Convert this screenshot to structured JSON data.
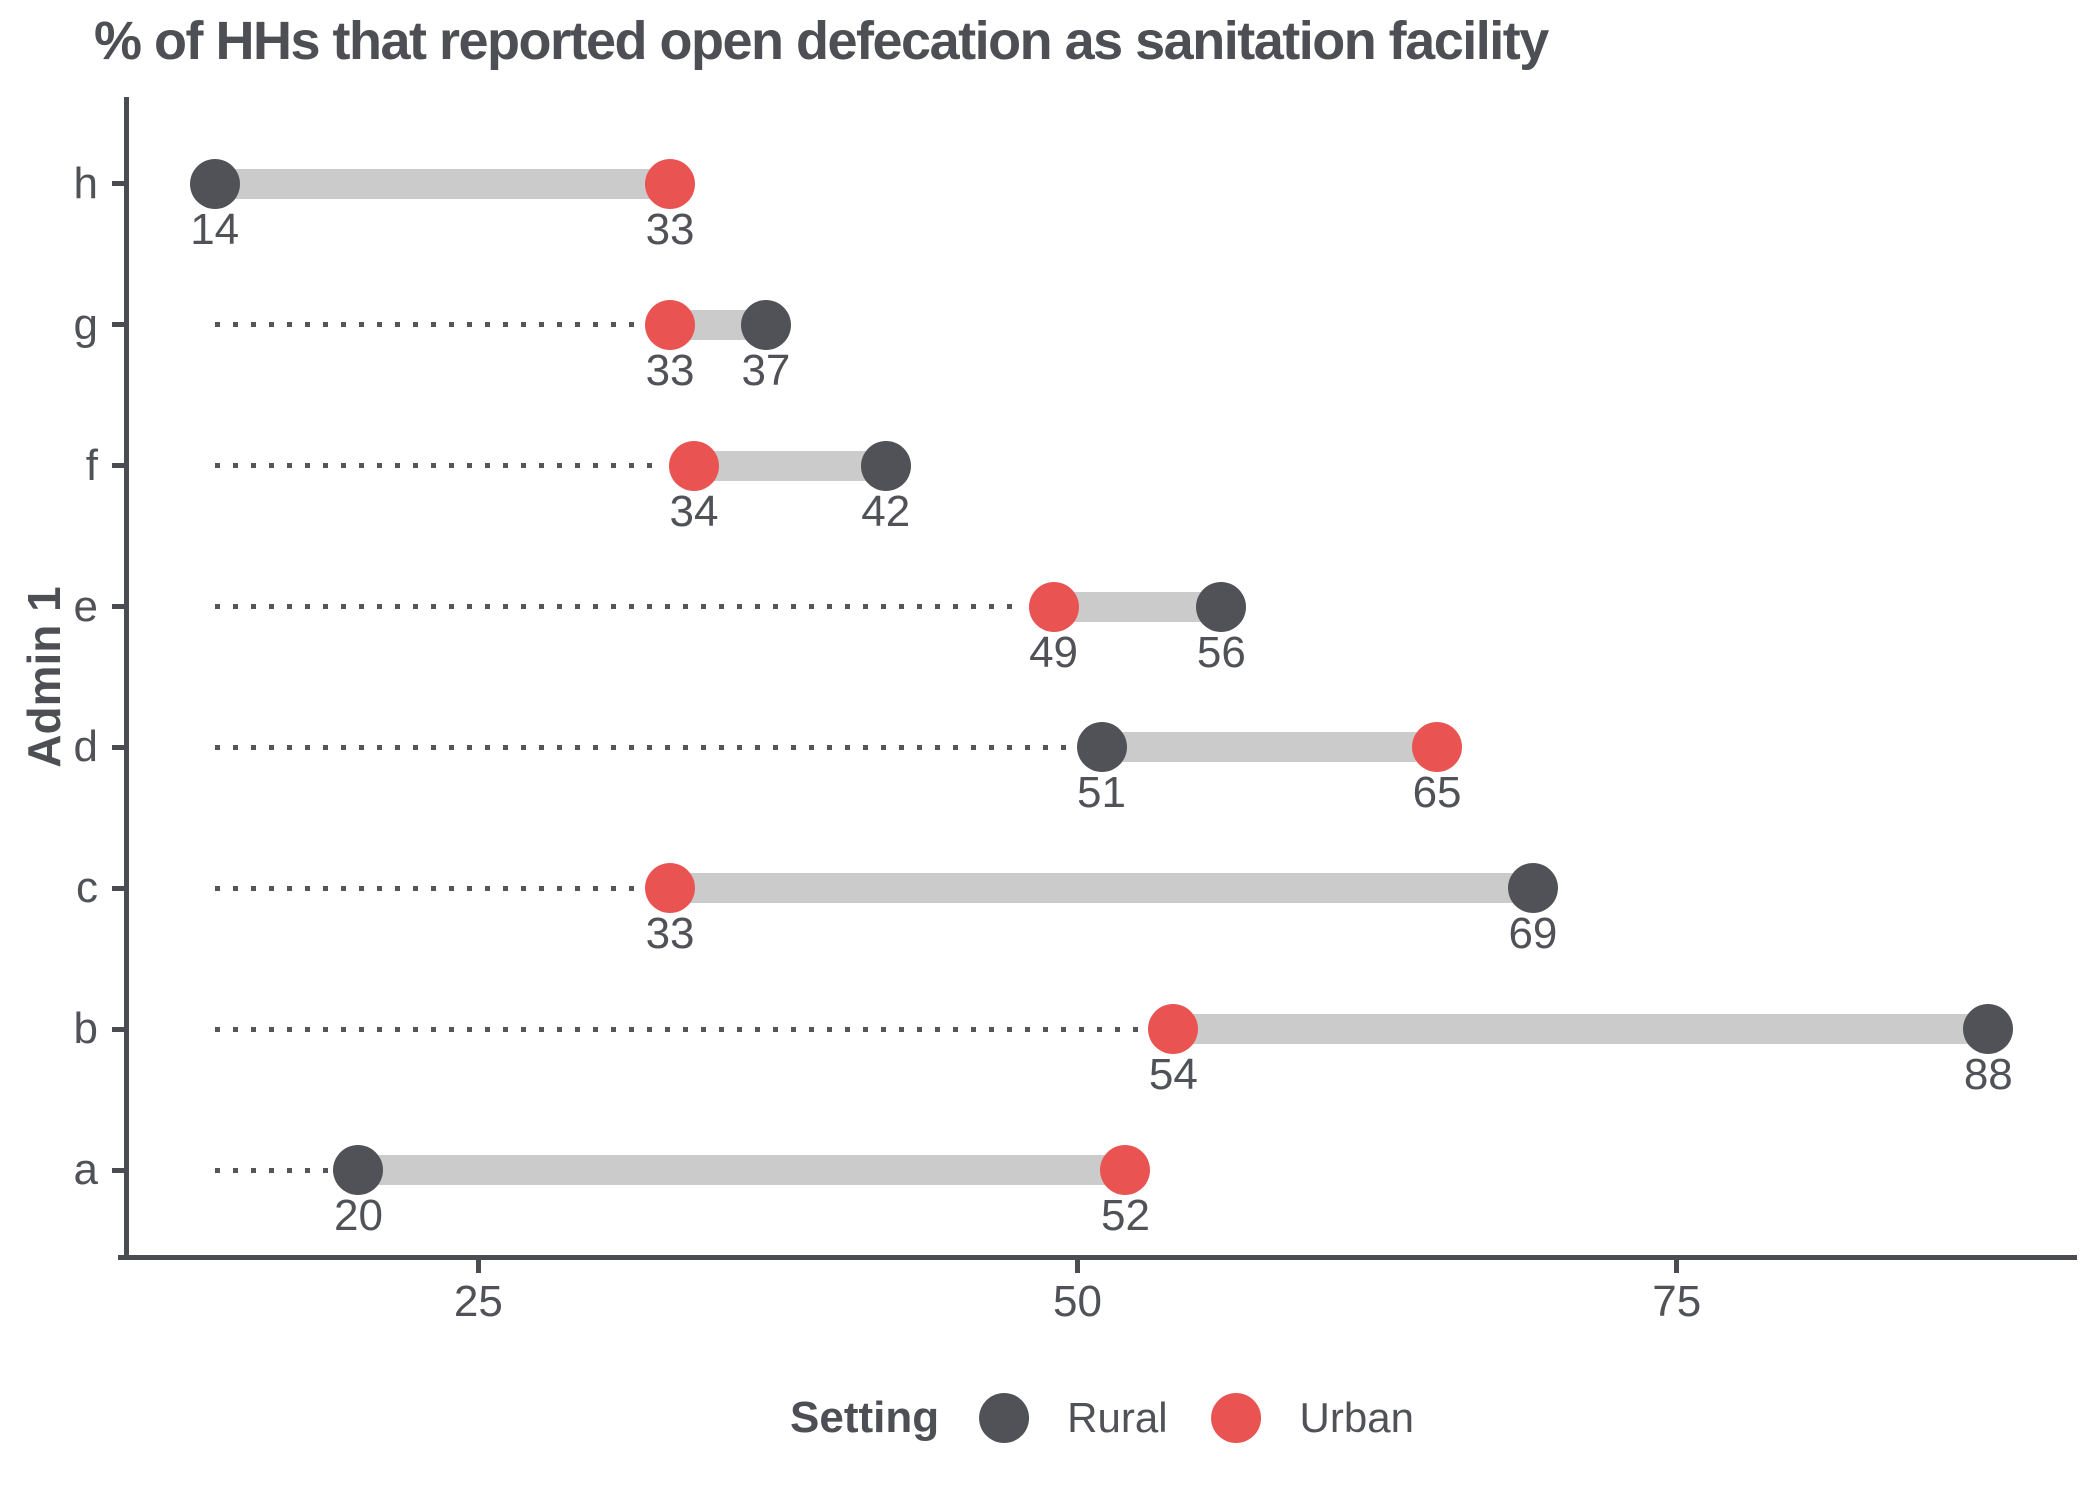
{
  "title": "% of HHs that reported open defecation as sanitation facility",
  "chart_data": {
    "type": "dumbbell",
    "title": "% of HHs that reported open defecation as sanitation facility",
    "xlabel": "",
    "ylabel": "Admin 1",
    "categories": [
      "h",
      "g",
      "f",
      "e",
      "d",
      "c",
      "b",
      "a"
    ],
    "series": [
      {
        "name": "Rural",
        "color": "#515257",
        "values": [
          14,
          37,
          42,
          56,
          51,
          69,
          88,
          20
        ]
      },
      {
        "name": "Urban",
        "color": "#E95452",
        "values": [
          33,
          33,
          34,
          49,
          65,
          33,
          54,
          52
        ]
      }
    ],
    "x_ticks": [
      "25",
      "50",
      "75"
    ],
    "x_tick_values": [
      25,
      50,
      75
    ],
    "x_domain": [
      10.3,
      91.7
    ],
    "connector_origin_value": 14,
    "grid": false,
    "legend_title": "Setting",
    "legend_position": "bottom",
    "colors": {
      "band": "#CBCBCB",
      "dotted_line": "#54565B",
      "axis_line": "#4A4C51",
      "text": "#505258"
    }
  }
}
